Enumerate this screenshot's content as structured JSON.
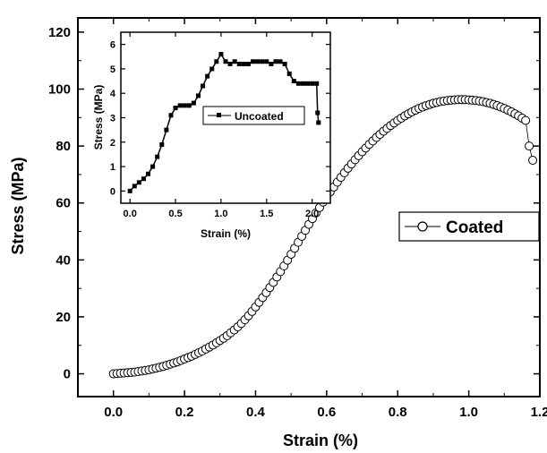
{
  "chart_data": [
    {
      "type": "scatter",
      "xlabel": "Strain (%)",
      "ylabel": "Stress (MPa)",
      "xlim": [
        -0.1,
        1.2
      ],
      "ylim": [
        -8,
        125
      ],
      "xticks": [
        "0.0",
        "0.2",
        "0.4",
        "0.6",
        "0.8",
        "1.0",
        "1.2"
      ],
      "yticks": [
        "0",
        "20",
        "40",
        "60",
        "80",
        "100",
        "120"
      ],
      "legend": "right",
      "series": [
        {
          "name": "Coated",
          "marker": "open-circle",
          "x": [
            0.0,
            0.01,
            0.02,
            0.03,
            0.04,
            0.05,
            0.06,
            0.07,
            0.08,
            0.09,
            0.1,
            0.11,
            0.12,
            0.13,
            0.14,
            0.15,
            0.16,
            0.17,
            0.18,
            0.19,
            0.2,
            0.21,
            0.22,
            0.23,
            0.24,
            0.25,
            0.26,
            0.27,
            0.28,
            0.29,
            0.3,
            0.31,
            0.32,
            0.33,
            0.34,
            0.35,
            0.36,
            0.37,
            0.38,
            0.39,
            0.4,
            0.41,
            0.42,
            0.43,
            0.44,
            0.45,
            0.46,
            0.47,
            0.48,
            0.49,
            0.5,
            0.51,
            0.52,
            0.53,
            0.54,
            0.55,
            0.56,
            0.57,
            0.58,
            0.59,
            0.6,
            0.61,
            0.62,
            0.63,
            0.64,
            0.65,
            0.66,
            0.67,
            0.68,
            0.69,
            0.7,
            0.71,
            0.72,
            0.73,
            0.74,
            0.75,
            0.76,
            0.77,
            0.78,
            0.79,
            0.8,
            0.81,
            0.82,
            0.83,
            0.84,
            0.85,
            0.86,
            0.87,
            0.88,
            0.89,
            0.9,
            0.91,
            0.92,
            0.93,
            0.94,
            0.95,
            0.96,
            0.97,
            0.98,
            0.99,
            1.0,
            1.01,
            1.02,
            1.03,
            1.04,
            1.05,
            1.06,
            1.07,
            1.08,
            1.09,
            1.1,
            1.11,
            1.12,
            1.13,
            1.14,
            1.15,
            1.16,
            1.17,
            1.18
          ],
          "y": [
            0.0,
            0.1,
            0.2,
            0.3,
            0.4,
            0.5,
            0.6,
            0.8,
            1.0,
            1.2,
            1.4,
            1.7,
            2.0,
            2.3,
            2.6,
            3.0,
            3.4,
            3.8,
            4.2,
            4.7,
            5.2,
            5.7,
            6.2,
            6.8,
            7.4,
            8.0,
            8.7,
            9.4,
            10.1,
            10.9,
            11.7,
            12.5,
            13.4,
            14.4,
            15.4,
            16.5,
            17.7,
            19.0,
            20.4,
            21.9,
            23.5,
            25.1,
            26.8,
            28.5,
            30.3,
            32.1,
            34.0,
            35.9,
            37.9,
            39.9,
            42.0,
            44.1,
            46.2,
            48.3,
            50.4,
            52.5,
            54.5,
            56.5,
            58.4,
            60.3,
            62.1,
            63.9,
            65.6,
            67.3,
            69.0,
            70.6,
            72.2,
            73.7,
            75.2,
            76.6,
            78.0,
            79.3,
            80.6,
            81.8,
            83.0,
            84.1,
            85.2,
            86.2,
            87.2,
            88.1,
            89.0,
            89.8,
            90.6,
            91.3,
            92.0,
            92.6,
            93.2,
            93.7,
            94.2,
            94.6,
            95.0,
            95.3,
            95.6,
            95.8,
            96.0,
            96.1,
            96.2,
            96.3,
            96.3,
            96.3,
            96.2,
            96.1,
            96.0,
            95.8,
            95.6,
            95.3,
            95.0,
            94.6,
            94.2,
            93.7,
            93.2,
            92.6,
            92.0,
            91.3,
            90.6,
            89.8,
            89.0,
            80.0,
            75.0
          ]
        }
      ]
    },
    {
      "type": "line",
      "xlabel": "Strain (%)",
      "ylabel": "Stress (MPa)",
      "xlim": [
        -0.1,
        2.2
      ],
      "ylim": [
        -0.5,
        6.5
      ],
      "xticks": [
        "0.0",
        "0.5",
        "1.0",
        "1.5",
        "2.0"
      ],
      "yticks": [
        "0",
        "1",
        "2",
        "3",
        "4",
        "5",
        "6"
      ],
      "legend": "right",
      "series": [
        {
          "name": "Uncoated",
          "marker": "filled-square",
          "x": [
            0.0,
            0.05,
            0.1,
            0.15,
            0.2,
            0.25,
            0.3,
            0.35,
            0.4,
            0.45,
            0.5,
            0.55,
            0.6,
            0.65,
            0.7,
            0.75,
            0.8,
            0.85,
            0.9,
            0.95,
            1.0,
            1.05,
            1.1,
            1.15,
            1.2,
            1.25,
            1.3,
            1.35,
            1.4,
            1.45,
            1.5,
            1.55,
            1.6,
            1.65,
            1.7,
            1.75,
            1.8,
            1.85,
            1.9,
            1.95,
            2.0,
            2.05,
            2.06,
            2.07
          ],
          "y": [
            0.0,
            0.2,
            0.35,
            0.5,
            0.7,
            1.0,
            1.4,
            1.9,
            2.5,
            3.1,
            3.4,
            3.5,
            3.5,
            3.5,
            3.6,
            3.9,
            4.3,
            4.7,
            5.0,
            5.3,
            5.6,
            5.3,
            5.2,
            5.3,
            5.2,
            5.2,
            5.2,
            5.3,
            5.3,
            5.3,
            5.3,
            5.2,
            5.3,
            5.3,
            5.2,
            4.8,
            4.5,
            4.4,
            4.4,
            4.4,
            4.4,
            4.4,
            3.2,
            2.8
          ]
        }
      ]
    }
  ]
}
